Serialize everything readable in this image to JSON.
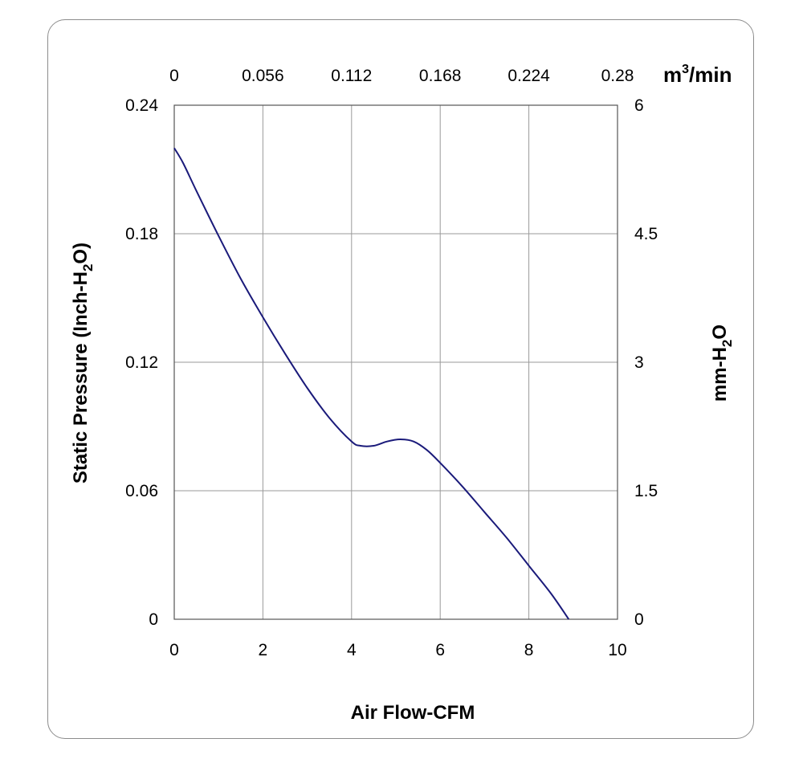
{
  "chart_data": {
    "type": "line",
    "x_bottom": {
      "label": "Air Flow-CFM",
      "range": [
        0,
        10
      ],
      "ticks": [
        "0",
        "2",
        "4",
        "6",
        "8",
        "10"
      ]
    },
    "x_top": {
      "unit_main": "m",
      "unit_sup": "3",
      "unit_rest": "/min",
      "range": [
        0,
        0.28
      ],
      "ticks": [
        "0",
        "0.056",
        "0.112",
        "0.168",
        "0.224",
        "0.28"
      ]
    },
    "y_left": {
      "label_main": "Static Pressure (Inch-H",
      "label_sub": "2",
      "label_end": "O)",
      "range": [
        0,
        0.24
      ],
      "ticks": [
        "0",
        "0.06",
        "0.12",
        "0.18",
        "0.24"
      ]
    },
    "y_right": {
      "label_main": "mm-H",
      "label_sub": "2",
      "label_end": "O",
      "range": [
        0,
        6
      ],
      "ticks": [
        "0",
        "1.5",
        "3",
        "4.5",
        "6"
      ]
    },
    "grid": true,
    "line_color": "#1a1a7a",
    "series": [
      {
        "x": [
          0,
          0.2,
          0.5,
          1.0,
          1.5,
          2.0,
          2.5,
          3.0,
          3.5,
          4.0,
          4.2,
          4.5,
          4.8,
          5.1,
          5.4,
          5.7,
          6.0,
          6.5,
          7.0,
          7.5,
          8.0,
          8.5,
          8.9
        ],
        "y": [
          0.22,
          0.213,
          0.2,
          0.179,
          0.159,
          0.141,
          0.124,
          0.108,
          0.094,
          0.083,
          0.081,
          0.081,
          0.083,
          0.084,
          0.083,
          0.079,
          0.073,
          0.062,
          0.05,
          0.038,
          0.025,
          0.012,
          0.0
        ]
      }
    ]
  }
}
